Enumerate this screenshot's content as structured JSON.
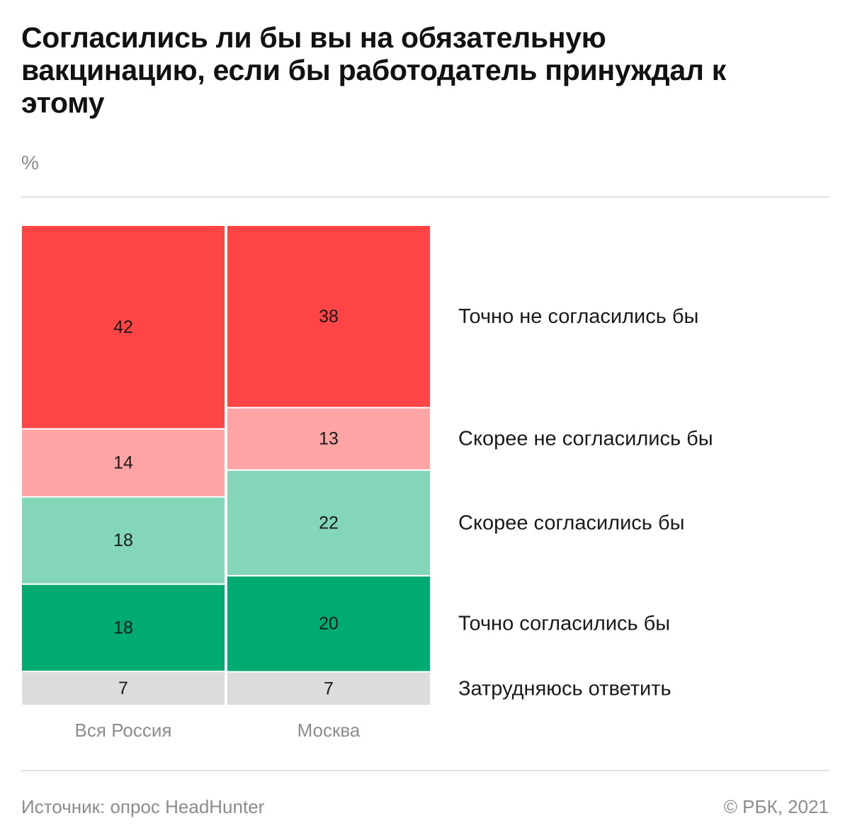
{
  "chart_data": {
    "type": "bar",
    "subtype": "stacked-100-marimekko",
    "title": "Согласились ли бы вы на обязательную вакцинацию, если бы работодатель принуждал к этому",
    "unit": "%",
    "categories": [
      "Вся Россия",
      "Москва"
    ],
    "series": [
      {
        "name": "Точно не согласились бы",
        "color": "#ff4545",
        "values": [
          42,
          38
        ]
      },
      {
        "name": "Скорее не согласились бы",
        "color": "#ffa4a4",
        "values": [
          14,
          13
        ]
      },
      {
        "name": "Скорее согласились бы",
        "color": "#83d7b8",
        "values": [
          18,
          22
        ]
      },
      {
        "name": "Точно согласились бы",
        "color": "#00aa73",
        "values": [
          18,
          20
        ]
      },
      {
        "name": "Затрудняюсь ответить",
        "color": "#dcdcdc",
        "values": [
          7,
          7
        ]
      }
    ],
    "legend_position": "right",
    "ylim": [
      0,
      100
    ]
  },
  "footer": {
    "source": "Источник: опрос HeadHunter",
    "copyright": "© РБК, 2021"
  }
}
